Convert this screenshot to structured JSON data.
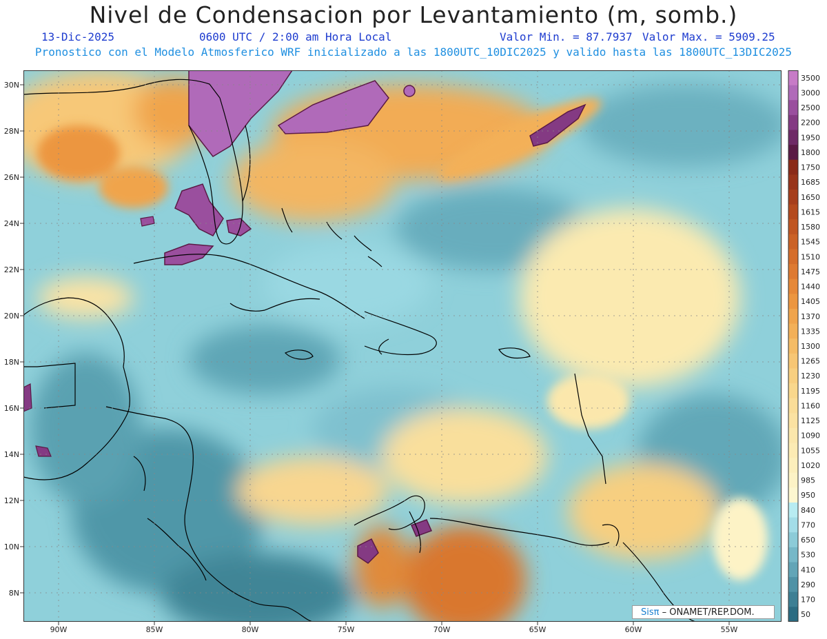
{
  "header": {
    "title": "Nivel de Condensacion por Levantamiento (m, somb.)",
    "date": "13-Dic-2025",
    "time": "0600 UTC / 2:00 am Hora Local",
    "min": "Valor Min. = 87.7937",
    "max": "Valor Max. = 5909.25",
    "subtitle": "Pronostico con el Modelo Atmosferico WRF inicializado a las 1800UTC_10DIC2025 y valido hasta las  1800UTC_13DIC2025"
  },
  "axes": {
    "lon_labels": [
      "90W",
      "85W",
      "80W",
      "75W",
      "70W",
      "65W",
      "60W",
      "55W"
    ],
    "lat_labels": [
      "30N",
      "28N",
      "26N",
      "24N",
      "22N",
      "20N",
      "18N",
      "16N",
      "14N",
      "12N",
      "10N",
      "8N"
    ]
  },
  "colorbar": {
    "labels": [
      "3500",
      "3000",
      "2500",
      "2200",
      "1950",
      "1800",
      "1750",
      "1685",
      "1650",
      "1615",
      "1580",
      "1545",
      "1510",
      "1475",
      "1440",
      "1405",
      "1370",
      "1335",
      "1300",
      "1265",
      "1230",
      "1195",
      "1160",
      "1125",
      "1090",
      "1055",
      "1020",
      "985",
      "950",
      "840",
      "770",
      "650",
      "530",
      "410",
      "290",
      "170",
      "50"
    ],
    "colors": [
      "#c77bc7",
      "#b06ab9",
      "#9a4f9e",
      "#843a83",
      "#6e2a66",
      "#5a1a45",
      "#8a2a18",
      "#98341a",
      "#a63e1c",
      "#b44a1e",
      "#c05622",
      "#cb6226",
      "#d56e2c",
      "#de7a32",
      "#e68838",
      "#ec9640",
      "#f0a44c",
      "#f3b058",
      "#f5bc66",
      "#f7c674",
      "#f8cf80",
      "#f9d78c",
      "#fadd98",
      "#fbe2a2",
      "#fbe7ac",
      "#fcebb4",
      "#fcefbc",
      "#fdf3c6",
      "#fdf7d0",
      "#b8ecf2",
      "#a3dde8",
      "#8ccbd8",
      "#76b8c8",
      "#62a5b7",
      "#4f92a6",
      "#3d7f94",
      "#2c6c82"
    ]
  },
  "footer": {
    "logo_sis": "Sisπ",
    "logo_org": "– ONAMET/REP.DOM."
  }
}
